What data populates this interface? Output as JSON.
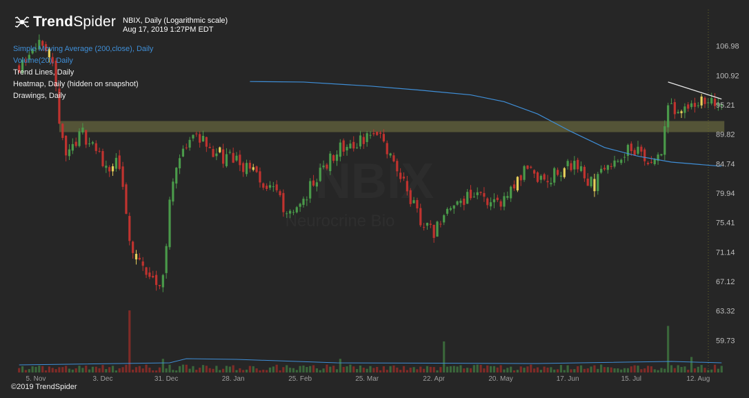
{
  "brand": {
    "name_bold": "Trend",
    "name_light": "Spider",
    "copyright": "©2019 TrendSpider"
  },
  "header": {
    "symbol_line": "NBIX, Daily (Logarithmic scale)",
    "timestamp": "Aug 17, 2019 1:27PM EDT"
  },
  "watermark": {
    "ticker": "NBIX",
    "company": "Neurocrine Bio"
  },
  "legend": [
    {
      "label": "Simple Moving Average (200,close), Daily",
      "color": "#3f8fd8"
    },
    {
      "label": "Volume(20), Daily",
      "color": "#3f8fd8"
    },
    {
      "label": "Trend Lines, Daily",
      "color": "#f0f0f0"
    },
    {
      "label": "Heatmap, Daily (hidden on snapshot)",
      "color": "#f0f0f0"
    },
    {
      "label": "Drawings, Daily",
      "color": "#f0f0f0"
    }
  ],
  "colors": {
    "background": "#262626",
    "up": "#4a9a4a",
    "down": "#c0332f",
    "doji": "#e6cf5a",
    "sma": "#3f8fd8",
    "resistance_zone": "#5a5a3a",
    "trendline": "#e8e8e8",
    "axis_text": "#bdbdbd"
  },
  "chart_data": {
    "type": "candlestick",
    "scale": "log",
    "y_ticks": [
      106.98,
      100.92,
      95.21,
      89.82,
      84.74,
      79.94,
      75.41,
      71.14,
      67.12,
      63.32,
      59.73
    ],
    "ylim": [
      58.0,
      114.0
    ],
    "x_ticks": [
      "5. Nov",
      "3. Dec",
      "31. Dec",
      "28. Jan",
      "25. Feb",
      "25. Mar",
      "22. Apr",
      "20. May",
      "17. Jun",
      "15. Jul",
      "12. Aug"
    ],
    "x_tick_index": [
      0,
      20,
      39,
      59,
      79,
      99,
      119,
      139,
      159,
      178,
      198
    ],
    "period": {
      "first_day_index": -5,
      "last_day_index": 205
    },
    "close_path": [
      [
        -5,
        103
      ],
      [
        0,
        108
      ],
      [
        5,
        102
      ],
      [
        7,
        93
      ],
      [
        9,
        86
      ],
      [
        11,
        88
      ],
      [
        14,
        90
      ],
      [
        17,
        88
      ],
      [
        19,
        86
      ],
      [
        22,
        84
      ],
      [
        24,
        85
      ],
      [
        26,
        81
      ],
      [
        28,
        72
      ],
      [
        30,
        70
      ],
      [
        33,
        68
      ],
      [
        36,
        67
      ],
      [
        38,
        68
      ],
      [
        40,
        78
      ],
      [
        42,
        85
      ],
      [
        45,
        87
      ],
      [
        47,
        90
      ],
      [
        50,
        89
      ],
      [
        53,
        87
      ],
      [
        56,
        86
      ],
      [
        59,
        86
      ],
      [
        62,
        84
      ],
      [
        65,
        83
      ],
      [
        68,
        81
      ],
      [
        71,
        80
      ],
      [
        74,
        78
      ],
      [
        77,
        77
      ],
      [
        80,
        79
      ],
      [
        83,
        82
      ],
      [
        86,
        84
      ],
      [
        89,
        86
      ],
      [
        92,
        88
      ],
      [
        95,
        87
      ],
      [
        98,
        89
      ],
      [
        101,
        90
      ],
      [
        104,
        88
      ],
      [
        107,
        85
      ],
      [
        110,
        82
      ],
      [
        113,
        78
      ],
      [
        116,
        75
      ],
      [
        119,
        74
      ],
      [
        122,
        76
      ],
      [
        125,
        78
      ],
      [
        128,
        79
      ],
      [
        131,
        80
      ],
      [
        134,
        79
      ],
      [
        137,
        78
      ],
      [
        140,
        79
      ],
      [
        143,
        81
      ],
      [
        146,
        84
      ],
      [
        149,
        83
      ],
      [
        152,
        82
      ],
      [
        155,
        83
      ],
      [
        158,
        84
      ],
      [
        161,
        85
      ],
      [
        164,
        83
      ],
      [
        167,
        81
      ],
      [
        170,
        84
      ],
      [
        173,
        86
      ],
      [
        176,
        87
      ],
      [
        179,
        87
      ],
      [
        182,
        86
      ],
      [
        185,
        85
      ],
      [
        187,
        86
      ],
      [
        189,
        95
      ],
      [
        192,
        94
      ],
      [
        195,
        95
      ],
      [
        198,
        96
      ],
      [
        201,
        95
      ],
      [
        203,
        96
      ],
      [
        205,
        96
      ]
    ],
    "volume": {
      "ymax": 1.0,
      "baseline_level": 0.08,
      "spikes": [
        [
          28,
          1.0
        ],
        [
          38,
          0.22
        ],
        [
          91,
          0.22
        ],
        [
          122,
          0.5
        ],
        [
          189,
          0.75
        ],
        [
          196,
          0.25
        ]
      ]
    },
    "sma_200": [
      [
        64,
        99.7
      ],
      [
        80,
        99.6
      ],
      [
        100,
        98.8
      ],
      [
        115,
        98.0
      ],
      [
        130,
        97.1
      ],
      [
        140,
        95.8
      ],
      [
        150,
        93.5
      ],
      [
        160,
        90.3
      ],
      [
        170,
        87.5
      ],
      [
        180,
        86.0
      ],
      [
        190,
        85.0
      ],
      [
        205,
        84.3
      ]
    ],
    "resistance_zone": {
      "low": 90.2,
      "high": 92.2,
      "from_index": 7,
      "to_index": 205
    },
    "trendline": {
      "from": [
        189,
        99.6
      ],
      "to": [
        205,
        96.3
      ]
    }
  }
}
